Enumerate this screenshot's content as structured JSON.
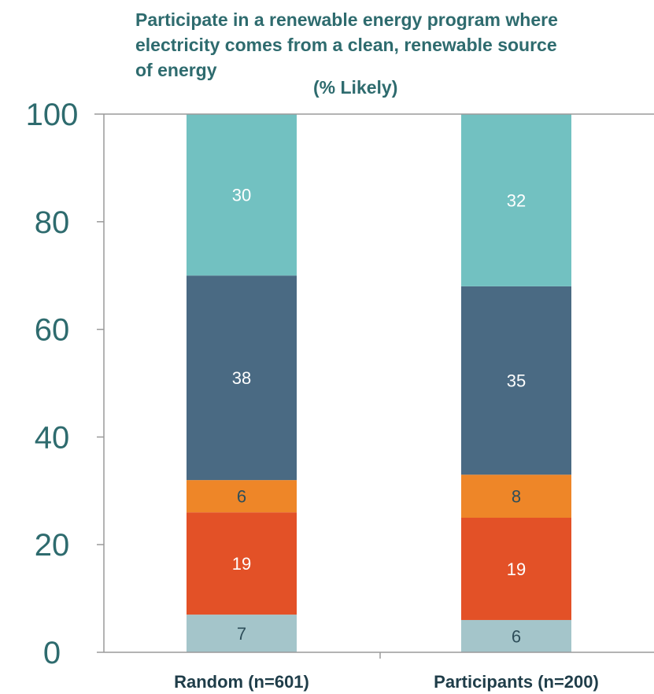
{
  "chart_data": {
    "type": "bar",
    "stacked": true,
    "title_lines": [
      "Participate in a renewable energy program where",
      "electricity comes from a clean, renewable source",
      "of energy"
    ],
    "subtitle": "(% Likely)",
    "xlabel": "",
    "ylabel": "",
    "categories": [
      "Random (n=601)",
      "Participants (n=200)"
    ],
    "ylim": [
      0,
      100
    ],
    "yticks": [
      0,
      20,
      40,
      60,
      80,
      100
    ],
    "grid": false,
    "legend": "none",
    "series": [
      {
        "values": [
          7,
          6
        ],
        "color": "#a4c5ca",
        "label_color": "#2e4e5a"
      },
      {
        "values": [
          19,
          19
        ],
        "color": "#e35127",
        "label_color": "#ffffff"
      },
      {
        "values": [
          6,
          8
        ],
        "color": "#ee8628",
        "label_color": "#2e4e5a"
      },
      {
        "values": [
          38,
          35
        ],
        "color": "#4a6a83",
        "label_color": "#ffffff"
      },
      {
        "values": [
          30,
          32
        ],
        "color": "#72c1c1",
        "label_color": "#ffffff"
      }
    ]
  },
  "colors": {
    "title": "#2e6b6e",
    "tick_labels": "#2e6b6e",
    "category_labels": "#1f3d49",
    "axis": "#9a9a9a"
  }
}
